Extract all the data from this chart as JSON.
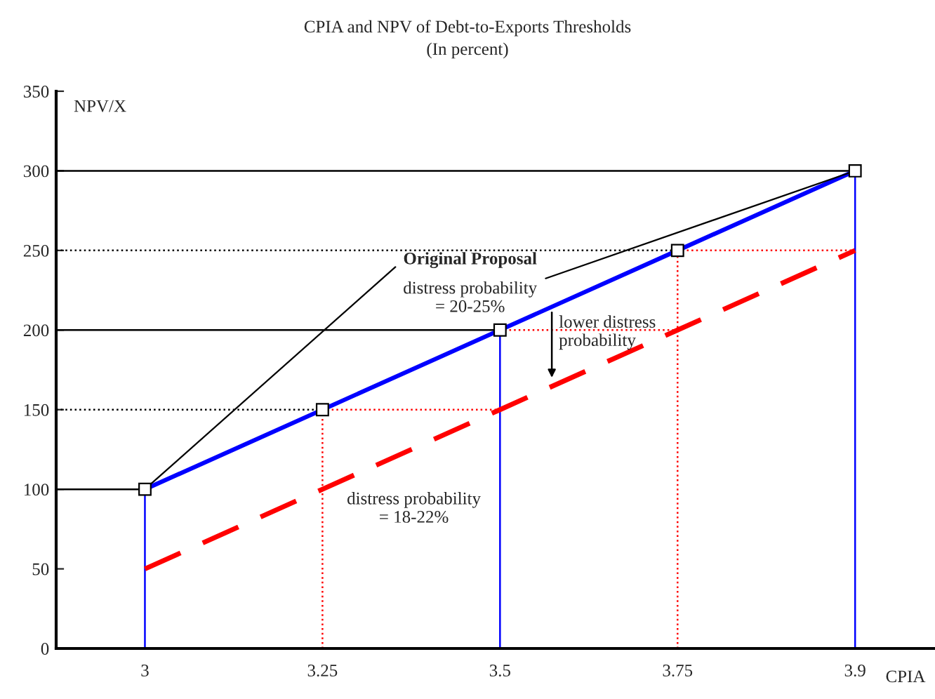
{
  "chart_data": {
    "type": "line",
    "title": "CPIA and NPV of Debt-to-Exports Thresholds",
    "subtitle": "(In percent)",
    "xlabel": "CPIA",
    "ylabel": "NPV/X",
    "categories": [
      "3",
      "3.25",
      "3.5",
      "3.75",
      "3.9"
    ],
    "series": [
      {
        "color": "#0000ff",
        "values": [
          100,
          150,
          200,
          250,
          300
        ],
        "marker": "square",
        "line_style": "solid"
      },
      {
        "color": "#ff0000",
        "values": [
          50,
          100,
          150,
          200,
          250
        ],
        "marker": "none",
        "line_style": "dashed"
      }
    ],
    "ylim": [
      0,
      350
    ],
    "yticks": [
      0,
      50,
      100,
      150,
      200,
      250,
      300,
      350
    ],
    "grid": false,
    "legend": false,
    "ref_lines": [
      {
        "axis": "y",
        "value": 100,
        "color": "#000000",
        "line_style": "solid"
      },
      {
        "axis": "y",
        "value": 150,
        "color": "#000000",
        "line_style": "dotted"
      },
      {
        "axis": "y",
        "value": 200,
        "color": "#000000",
        "line_style": "solid"
      },
      {
        "axis": "y",
        "value": 250,
        "color": "#000000",
        "line_style": "dotted"
      },
      {
        "axis": "y",
        "value": 300,
        "color": "#000000",
        "line_style": "solid"
      },
      {
        "axis": "y",
        "value": 150,
        "color": "#ff0000",
        "line_style": "dotted"
      },
      {
        "axis": "y",
        "value": 200,
        "color": "#ff0000",
        "line_style": "dotted"
      },
      {
        "axis": "y",
        "value": 250,
        "color": "#ff0000",
        "line_style": "dotted"
      },
      {
        "axis": "x",
        "value": "3",
        "color": "#0000ff",
        "line_style": "solid"
      },
      {
        "axis": "x",
        "value": "3.25",
        "color": "#ff0000",
        "line_style": "dotted"
      },
      {
        "axis": "x",
        "value": "3.5",
        "color": "#0000ff",
        "line_style": "solid"
      },
      {
        "axis": "x",
        "value": "3.75",
        "color": "#ff0000",
        "line_style": "dotted"
      },
      {
        "axis": "x",
        "value": "3.9",
        "color": "#0000ff",
        "line_style": "solid"
      }
    ],
    "annotations": [
      {
        "text": "Original Proposal",
        "x": "3",
        "y": 100
      },
      {
        "text": "distress probability\n= 20-25%",
        "x": "3.9",
        "y": 300
      },
      "lower distress\nprobability",
      "distress probability\n= 18-22%"
    ]
  }
}
